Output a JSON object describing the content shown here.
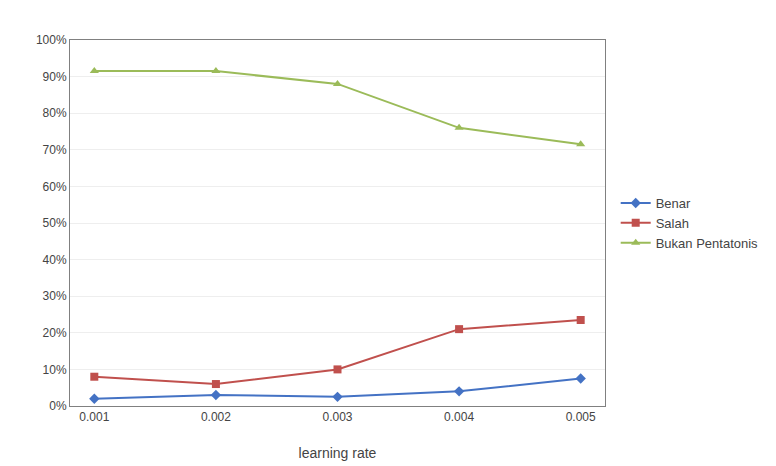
{
  "chart_data": {
    "type": "line",
    "x_label": "learning rate",
    "x": [
      0.001,
      0.002,
      0.003,
      0.004,
      0.005
    ],
    "series": [
      {
        "name": "Benar",
        "color": "#4472c4",
        "marker": "diamond",
        "values": [
          0.02,
          0.03,
          0.025,
          0.04,
          0.075
        ]
      },
      {
        "name": "Salah",
        "color": "#c0504d",
        "marker": "square",
        "values": [
          0.08,
          0.06,
          0.1,
          0.21,
          0.235
        ]
      },
      {
        "name": "Bukan Pentatonis",
        "color": "#9bbb59",
        "marker": "triangle-up",
        "values": [
          0.915,
          0.915,
          0.88,
          0.76,
          0.715
        ]
      }
    ],
    "xlim": [
      0.0008,
      0.0052
    ],
    "xticks": [
      0.001,
      0.002,
      0.003,
      0.004,
      0.005
    ],
    "ylim": [
      0.0,
      1.0
    ],
    "yticks": [
      {
        "value": 0.0,
        "label": "0%"
      },
      {
        "value": 0.1,
        "label": "10%"
      },
      {
        "value": 0.2,
        "label": "20%"
      },
      {
        "value": 0.3,
        "label": "30%"
      },
      {
        "value": 0.4,
        "label": "40%"
      },
      {
        "value": 0.5,
        "label": "50%"
      },
      {
        "value": 0.6,
        "label": "60%"
      },
      {
        "value": 0.7,
        "label": "70%"
      },
      {
        "value": 0.8,
        "label": "80%"
      },
      {
        "value": 0.9,
        "label": "90%"
      },
      {
        "value": 1.0,
        "label": "100%"
      }
    ],
    "grid": "y",
    "legend": "right"
  }
}
